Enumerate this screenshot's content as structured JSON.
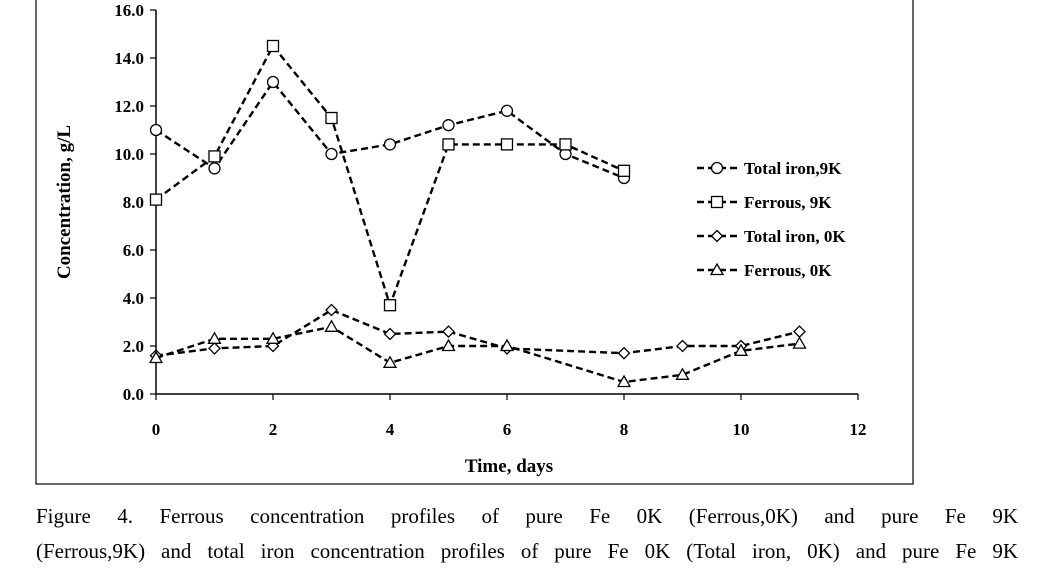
{
  "chart_data": {
    "type": "line",
    "title": "",
    "xlabel": "Time, days",
    "ylabel": "Concentration, g/L",
    "xlim": [
      0,
      12
    ],
    "ylim": [
      0,
      16
    ],
    "x_ticks": [
      "0",
      "2",
      "4",
      "6",
      "8",
      "10",
      "12"
    ],
    "y_ticks": [
      "0.0",
      "2.0",
      "4.0",
      "6.0",
      "8.0",
      "10.0",
      "12.0",
      "14.0",
      "16.0"
    ],
    "grid": false,
    "legend_position": "right",
    "series": [
      {
        "name": "Total iron,9K",
        "marker": "circle",
        "x": [
          0,
          1,
          2,
          3,
          4,
          5,
          6,
          7,
          8
        ],
        "y": [
          11.0,
          9.4,
          13.0,
          10.0,
          10.4,
          11.2,
          11.8,
          10.0,
          9.0
        ]
      },
      {
        "name": "Ferrous, 9K",
        "marker": "square",
        "x": [
          0,
          1,
          2,
          3,
          4,
          5,
          6,
          7,
          8
        ],
        "y": [
          8.1,
          9.9,
          14.5,
          11.5,
          3.7,
          10.4,
          10.4,
          10.4,
          9.3
        ]
      },
      {
        "name": "Total iron, 0K",
        "marker": "diamond",
        "x": [
          0,
          1,
          2,
          3,
          4,
          5,
          6,
          8,
          9,
          10,
          11
        ],
        "y": [
          1.6,
          1.9,
          2.0,
          3.5,
          2.5,
          2.6,
          1.9,
          1.7,
          2.0,
          2.0,
          2.6
        ]
      },
      {
        "name": "Ferrous, 0K",
        "marker": "triangle",
        "x": [
          0,
          1,
          2,
          3,
          4,
          5,
          6,
          8,
          9,
          10,
          11
        ],
        "y": [
          1.5,
          2.3,
          2.3,
          2.8,
          1.3,
          2.0,
          2.0,
          0.5,
          0.8,
          1.8,
          2.1
        ]
      }
    ]
  },
  "caption": {
    "line1": "Figure 4. Ferrous concentration profiles of pure Fe 0K (Ferrous,0K) and pure Fe 9K",
    "line2": "(Ferrous,9K) and total iron concentration profiles of pure Fe 0K (Total iron, 0K) and pure Fe 9K"
  }
}
